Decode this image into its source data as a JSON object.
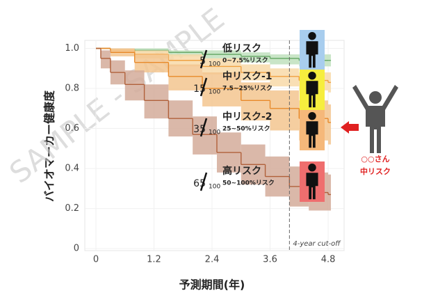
{
  "chart_data": {
    "type": "line",
    "xlabel": "予測期間(年)",
    "ylabel": "バイオマーカー健康度",
    "xlim": [
      -0.23,
      5.13
    ],
    "ylim": [
      -0.01,
      1.04
    ],
    "xticks": [
      0,
      1.2,
      2.4,
      3.6,
      4.8
    ],
    "yticks": [
      0,
      0.2,
      0.4,
      0.6,
      0.8,
      {
        "value": 1,
        "label": "1.0"
      }
    ],
    "grid": true,
    "cutoff": {
      "x": 4,
      "label": "4-year cut-off"
    },
    "watermark": "SAMPLE - SAMPLE",
    "series": [
      {
        "name": "低リスク",
        "range_label": "0~7.5%リスク",
        "count": 5,
        "denominator": 100,
        "color": "#6aaa6a",
        "band_color": "#bfe0bd",
        "box_color": "#a8cdee",
        "x": [
          0,
          0.3,
          0.8,
          1.5,
          2.2,
          3.0,
          3.6,
          4.2,
          4.8
        ],
        "values": [
          1,
          0.995,
          0.99,
          0.98,
          0.97,
          0.96,
          0.95,
          0.94,
          0.94
        ],
        "lower": [
          1,
          0.99,
          0.98,
          0.96,
          0.95,
          0.93,
          0.92,
          0.91,
          0.91
        ],
        "upper": [
          1,
          1,
          1,
          0.99,
          0.99,
          0.98,
          0.97,
          0.97,
          0.97
        ]
      },
      {
        "name": "中リスク-1",
        "range_label": "7.5~25%リスク",
        "count": 15,
        "denominator": 100,
        "color": "#f0a040",
        "band_color": "#f8d9a8",
        "box_color": "#f6ee3e",
        "x": [
          0,
          0.3,
          0.8,
          1.5,
          2.2,
          3.0,
          3.6,
          4.2,
          4.8
        ],
        "values": [
          1,
          0.99,
          0.97,
          0.94,
          0.91,
          0.88,
          0.86,
          0.84,
          0.83
        ],
        "lower": [
          1,
          0.98,
          0.95,
          0.91,
          0.87,
          0.84,
          0.81,
          0.79,
          0.78
        ],
        "upper": [
          1,
          1,
          0.99,
          0.97,
          0.95,
          0.92,
          0.9,
          0.88,
          0.88
        ]
      },
      {
        "name": "中リスク-2",
        "range_label": "25~50%リスク",
        "count": 35,
        "denominator": 100,
        "color": "#e88a2a",
        "band_color": "#f3c58f",
        "box_color": "#f5b87a",
        "x": [
          0,
          0.3,
          0.8,
          1.5,
          2.2,
          3.0,
          3.6,
          4.2,
          4.8
        ],
        "values": [
          1,
          0.98,
          0.93,
          0.86,
          0.8,
          0.74,
          0.7,
          0.65,
          0.63
        ],
        "lower": [
          1,
          0.96,
          0.88,
          0.79,
          0.71,
          0.64,
          0.59,
          0.54,
          0.52
        ],
        "upper": [
          1,
          1,
          0.97,
          0.92,
          0.88,
          0.83,
          0.79,
          0.74,
          0.72
        ]
      },
      {
        "name": "高リスク",
        "range_label": "50~100%リスク",
        "count": 65,
        "denominator": 100,
        "color": "#b0603a",
        "band_color": "#d3ac9a",
        "box_color": "#ef6e6e",
        "x": [
          0,
          0.1,
          0.3,
          0.6,
          1.0,
          1.5,
          2.0,
          2.5,
          3.0,
          3.5,
          4.0,
          4.4,
          4.8
        ],
        "values": [
          1,
          0.95,
          0.88,
          0.82,
          0.74,
          0.65,
          0.57,
          0.48,
          0.42,
          0.36,
          0.31,
          0.28,
          0.27
        ],
        "lower": [
          1,
          0.9,
          0.82,
          0.74,
          0.65,
          0.56,
          0.47,
          0.38,
          0.32,
          0.26,
          0.21,
          0.19,
          0.19
        ],
        "upper": [
          1,
          0.99,
          0.94,
          0.89,
          0.82,
          0.74,
          0.66,
          0.58,
          0.52,
          0.46,
          0.41,
          0.38,
          0.37
        ]
      }
    ],
    "patient": {
      "name": "○○さん",
      "risk": "中リスク",
      "color": "#e02020"
    }
  }
}
